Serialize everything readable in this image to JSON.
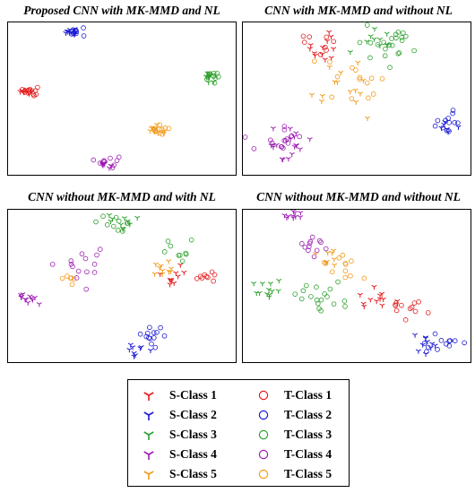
{
  "class_colors": [
    "#e41a1c",
    "#1a1ad4",
    "#2ca02c",
    "#9c1fb0",
    "#f29a1a"
  ],
  "legend": {
    "source": [
      "S-Class 1",
      "S-Class 2",
      "S-Class 3",
      "S-Class 4",
      "S-Class 5"
    ],
    "target": [
      "T-Class 1",
      "T-Class 2",
      "T-Class 3",
      "T-Class 4",
      "T-Class 5"
    ],
    "source_marker": "tri-y-marker",
    "target_marker": "open-circle-marker"
  },
  "chart_data": [
    {
      "type": "scatter",
      "title": "Proposed CNN with MK-MMD and NL",
      "xlim": [
        0,
        1
      ],
      "ylim": [
        0,
        1
      ],
      "clusters": [
        {
          "class": 1,
          "domain": "S",
          "x": 0.085,
          "y": 0.55,
          "spread": 0.015,
          "count": 10
        },
        {
          "class": 1,
          "domain": "T",
          "x": 0.1,
          "y": 0.55,
          "spread": 0.015,
          "count": 10
        },
        {
          "class": 2,
          "domain": "S",
          "x": 0.27,
          "y": 0.94,
          "spread": 0.015,
          "count": 10
        },
        {
          "class": 2,
          "domain": "T",
          "x": 0.3,
          "y": 0.94,
          "spread": 0.018,
          "count": 10
        },
        {
          "class": 3,
          "domain": "S",
          "x": 0.88,
          "y": 0.65,
          "spread": 0.015,
          "count": 10
        },
        {
          "class": 3,
          "domain": "T",
          "x": 0.905,
          "y": 0.64,
          "spread": 0.018,
          "count": 10
        },
        {
          "class": 4,
          "domain": "S",
          "x": 0.42,
          "y": 0.07,
          "spread": 0.02,
          "count": 10
        },
        {
          "class": 4,
          "domain": "T",
          "x": 0.445,
          "y": 0.09,
          "spread": 0.02,
          "count": 10
        },
        {
          "class": 5,
          "domain": "S",
          "x": 0.64,
          "y": 0.3,
          "spread": 0.018,
          "count": 10
        },
        {
          "class": 5,
          "domain": "T",
          "x": 0.67,
          "y": 0.3,
          "spread": 0.018,
          "count": 10
        }
      ]
    },
    {
      "type": "scatter",
      "title": "CNN with MK-MMD and without NL",
      "xlim": [
        0,
        1
      ],
      "ylim": [
        0,
        1
      ],
      "clusters": [
        {
          "class": 1,
          "domain": "S",
          "x": 0.35,
          "y": 0.82,
          "spread": 0.05,
          "count": 12
        },
        {
          "class": 1,
          "domain": "T",
          "x": 0.33,
          "y": 0.86,
          "spread": 0.04,
          "count": 8
        },
        {
          "class": 2,
          "domain": "S",
          "x": 0.9,
          "y": 0.32,
          "spread": 0.025,
          "count": 6
        },
        {
          "class": 2,
          "domain": "T",
          "x": 0.92,
          "y": 0.36,
          "spread": 0.035,
          "count": 12
        },
        {
          "class": 3,
          "domain": "S",
          "x": 0.58,
          "y": 0.9,
          "spread": 0.05,
          "count": 10
        },
        {
          "class": 3,
          "domain": "T",
          "x": 0.66,
          "y": 0.85,
          "spread": 0.06,
          "count": 22
        },
        {
          "class": 4,
          "domain": "S",
          "x": 0.18,
          "y": 0.18,
          "spread": 0.06,
          "count": 18
        },
        {
          "class": 4,
          "domain": "T",
          "x": 0.15,
          "y": 0.23,
          "spread": 0.06,
          "count": 16
        },
        {
          "class": 5,
          "domain": "S",
          "x": 0.46,
          "y": 0.62,
          "spread": 0.07,
          "count": 14
        },
        {
          "class": 5,
          "domain": "T",
          "x": 0.5,
          "y": 0.62,
          "spread": 0.07,
          "count": 14
        }
      ]
    },
    {
      "type": "scatter",
      "title": "CNN without MK-MMD and with NL",
      "xlim": [
        0,
        1
      ],
      "ylim": [
        0,
        1
      ],
      "clusters": [
        {
          "class": 1,
          "domain": "S",
          "x": 0.72,
          "y": 0.56,
          "spread": 0.04,
          "count": 10
        },
        {
          "class": 1,
          "domain": "T",
          "x": 0.88,
          "y": 0.57,
          "spread": 0.03,
          "count": 9
        },
        {
          "class": 2,
          "domain": "S",
          "x": 0.57,
          "y": 0.09,
          "spread": 0.025,
          "count": 9
        },
        {
          "class": 2,
          "domain": "T",
          "x": 0.64,
          "y": 0.17,
          "spread": 0.03,
          "count": 13
        },
        {
          "class": 3,
          "domain": "S",
          "x": 0.49,
          "y": 0.93,
          "spread": 0.035,
          "count": 10
        },
        {
          "class": 3,
          "domain": "T",
          "x": 0.48,
          "y": 0.91,
          "spread": 0.04,
          "count": 10
        },
        {
          "class": 3,
          "domain": "T",
          "x": 0.76,
          "y": 0.72,
          "spread": 0.04,
          "count": 9
        },
        {
          "class": 4,
          "domain": "S",
          "x": 0.09,
          "y": 0.41,
          "spread": 0.025,
          "count": 12
        },
        {
          "class": 4,
          "domain": "T",
          "x": 0.33,
          "y": 0.64,
          "spread": 0.05,
          "count": 14
        },
        {
          "class": 5,
          "domain": "S",
          "x": 0.69,
          "y": 0.6,
          "spread": 0.03,
          "count": 10
        },
        {
          "class": 5,
          "domain": "T",
          "x": 0.27,
          "y": 0.55,
          "spread": 0.03,
          "count": 6
        }
      ]
    },
    {
      "type": "scatter",
      "title": "CNN without MK-MMD and without NL",
      "xlim": [
        0,
        1
      ],
      "ylim": [
        0,
        1
      ],
      "clusters": [
        {
          "class": 1,
          "domain": "S",
          "x": 0.58,
          "y": 0.41,
          "spread": 0.04,
          "count": 12
        },
        {
          "class": 1,
          "domain": "T",
          "x": 0.72,
          "y": 0.38,
          "spread": 0.04,
          "count": 12
        },
        {
          "class": 2,
          "domain": "S",
          "x": 0.81,
          "y": 0.11,
          "spread": 0.04,
          "count": 10
        },
        {
          "class": 2,
          "domain": "T",
          "x": 0.88,
          "y": 0.12,
          "spread": 0.04,
          "count": 12
        },
        {
          "class": 3,
          "domain": "S",
          "x": 0.11,
          "y": 0.47,
          "spread": 0.04,
          "count": 12
        },
        {
          "class": 3,
          "domain": "T",
          "x": 0.36,
          "y": 0.43,
          "spread": 0.06,
          "count": 18
        },
        {
          "class": 4,
          "domain": "S",
          "x": 0.23,
          "y": 0.95,
          "spread": 0.025,
          "count": 10
        },
        {
          "class": 4,
          "domain": "T",
          "x": 0.3,
          "y": 0.75,
          "spread": 0.04,
          "count": 12
        },
        {
          "class": 5,
          "domain": "S",
          "x": 0.37,
          "y": 0.68,
          "spread": 0.04,
          "count": 8
        },
        {
          "class": 5,
          "domain": "T",
          "x": 0.42,
          "y": 0.62,
          "spread": 0.05,
          "count": 12
        }
      ]
    }
  ]
}
